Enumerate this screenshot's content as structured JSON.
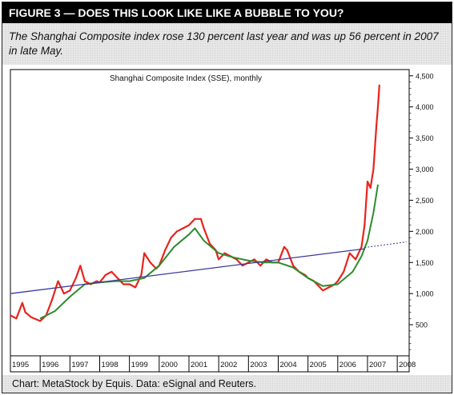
{
  "header": {
    "title": "FIGURE 3 — DOES THIS LOOK LIKE LIKE A BUBBLE TO YOU?",
    "subtitle": "The Shanghai Composite index rose 130 percent last year and was up 56 percent in 2007 in late May."
  },
  "footer": {
    "credit": "Chart: MetaStock by Equis. Data: eSignal and Reuters."
  },
  "colors": {
    "price": "#e8231c",
    "moving_average": "#2e8b2e",
    "trendline": "#3a3a9a",
    "frame": "#000000"
  },
  "chart_data": {
    "type": "line",
    "title": "Shanghai Composite Index (SSE), monthly",
    "x_labels": [
      "1995",
      "1996",
      "1997",
      "1998",
      "1999",
      "2000",
      "2001",
      "2002",
      "2003",
      "2004",
      "2005",
      "2006",
      "2007",
      "2008"
    ],
    "y_tick_labels": [
      "500",
      "1,000",
      "1,500",
      "2,000",
      "2,500",
      "3,000",
      "3,500",
      "4,000",
      "4,500"
    ],
    "y_ticks": [
      500,
      1000,
      1500,
      2000,
      2500,
      3000,
      3500,
      4000,
      4500
    ],
    "ylim": [
      0,
      4600
    ],
    "xlim": [
      1995.0,
      2008.4
    ],
    "series": [
      {
        "role": "price",
        "x": [
          1995.0,
          1995.2,
          1995.4,
          1995.5,
          1995.7,
          1995.9,
          1996.0,
          1996.2,
          1996.4,
          1996.6,
          1996.8,
          1997.0,
          1997.2,
          1997.35,
          1997.5,
          1997.7,
          1997.9,
          1998.0,
          1998.2,
          1998.4,
          1998.6,
          1998.8,
          1999.0,
          1999.2,
          1999.4,
          1999.5,
          1999.7,
          1999.9,
          2000.0,
          2000.2,
          2000.4,
          2000.6,
          2000.8,
          2001.0,
          2001.2,
          2001.4,
          2001.5,
          2001.7,
          2001.9,
          2002.0,
          2002.2,
          2002.4,
          2002.6,
          2002.8,
          2003.0,
          2003.2,
          2003.4,
          2003.6,
          2003.8,
          2004.0,
          2004.2,
          2004.3,
          2004.5,
          2004.7,
          2004.9,
          2005.0,
          2005.2,
          2005.4,
          2005.5,
          2005.7,
          2005.9,
          2006.0,
          2006.2,
          2006.4,
          2006.6,
          2006.8,
          2006.9,
          2007.0,
          2007.1,
          2007.2,
          2007.3,
          2007.35,
          2007.4
        ],
        "y": [
          650,
          600,
          850,
          700,
          620,
          580,
          560,
          650,
          900,
          1200,
          1000,
          1050,
          1250,
          1450,
          1200,
          1150,
          1200,
          1180,
          1300,
          1350,
          1250,
          1150,
          1150,
          1100,
          1300,
          1650,
          1500,
          1400,
          1450,
          1700,
          1900,
          2000,
          2050,
          2100,
          2200,
          2200,
          2050,
          1800,
          1700,
          1550,
          1650,
          1600,
          1550,
          1450,
          1500,
          1550,
          1450,
          1550,
          1500,
          1500,
          1750,
          1700,
          1450,
          1350,
          1300,
          1250,
          1200,
          1100,
          1050,
          1100,
          1150,
          1200,
          1350,
          1650,
          1550,
          1750,
          2100,
          2800,
          2700,
          3000,
          3700,
          4000,
          4350
        ]
      },
      {
        "role": "moving_average",
        "x": [
          1996.0,
          1996.5,
          1997.0,
          1997.5,
          1998.0,
          1998.5,
          1999.0,
          1999.5,
          2000.0,
          2000.5,
          2001.0,
          2001.2,
          2001.5,
          2002.0,
          2002.5,
          2003.0,
          2003.5,
          2004.0,
          2004.5,
          2005.0,
          2005.5,
          2006.0,
          2006.5,
          2006.8,
          2007.0,
          2007.2,
          2007.35
        ],
        "y": [
          600,
          720,
          950,
          1150,
          1180,
          1200,
          1200,
          1250,
          1450,
          1750,
          1950,
          2050,
          1850,
          1650,
          1580,
          1530,
          1500,
          1500,
          1420,
          1250,
          1120,
          1150,
          1350,
          1600,
          1850,
          2300,
          2750
        ]
      },
      {
        "role": "trendline",
        "x": [
          1995.0,
          2006.9
        ],
        "y": [
          1000,
          1720
        ]
      },
      {
        "role": "trendline_projection",
        "x": [
          2006.9,
          2008.3
        ],
        "y": [
          1740,
          1830
        ]
      }
    ],
    "grid": false,
    "legend": "none"
  }
}
